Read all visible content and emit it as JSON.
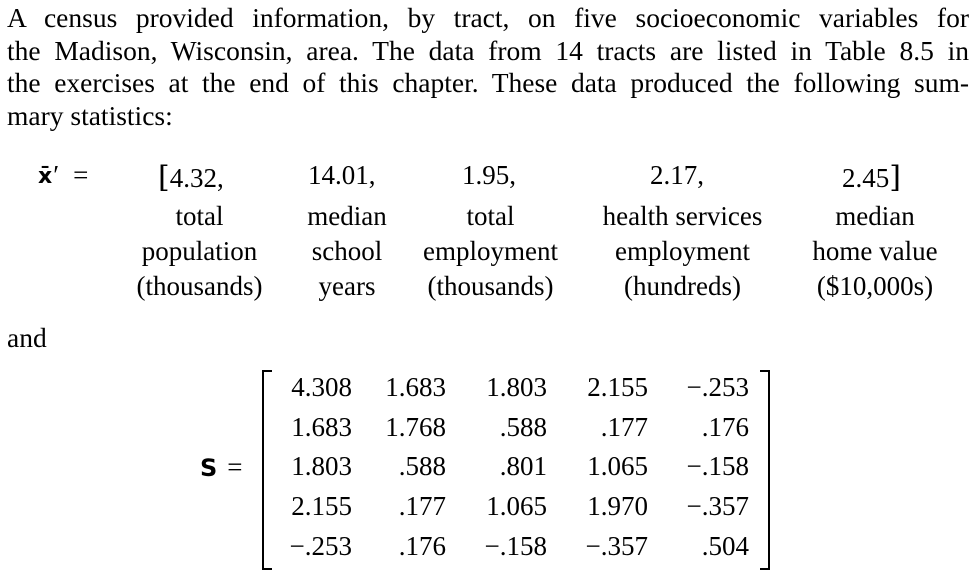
{
  "paragraph": {
    "lines": [
      "A census provided information, by tract, on five socioeconomic variables for",
      "the Madison, Wisconsin, area. The data from 14 tracts are listed in Table 8.5 in",
      "the exercises at the end of this chapter. These data produced the following sum-",
      "mary statistics:"
    ]
  },
  "mean_vector": {
    "symbol": "x̄",
    "prime": "′",
    "equals": "=",
    "open_bracket": "[",
    "close_bracket": "]",
    "values": [
      "4.32,",
      "14.01,",
      "1.95,",
      "2.17,",
      "2.45"
    ],
    "labels": [
      [
        "total",
        "population",
        "(thousands)"
      ],
      [
        "median",
        "school",
        "years"
      ],
      [
        "total",
        "employment",
        "(thousands)"
      ],
      [
        "health services",
        "employment",
        "(hundreds)"
      ],
      [
        "median",
        "home value",
        "($10,000s)"
      ]
    ]
  },
  "connector": "and",
  "covariance_matrix": {
    "symbol": "S",
    "equals": "=",
    "rows": [
      [
        "4.308",
        "1.683",
        "1.803",
        "2.155",
        "−.253"
      ],
      [
        "1.683",
        "1.768",
        ".588",
        ".177",
        ".176"
      ],
      [
        "1.803",
        ".588",
        ".801",
        "1.065",
        "−.158"
      ],
      [
        "2.155",
        ".177",
        "1.065",
        "1.970",
        "−.357"
      ],
      [
        "−.253",
        ".176",
        "−.158",
        "−.357",
        ".504"
      ]
    ]
  }
}
